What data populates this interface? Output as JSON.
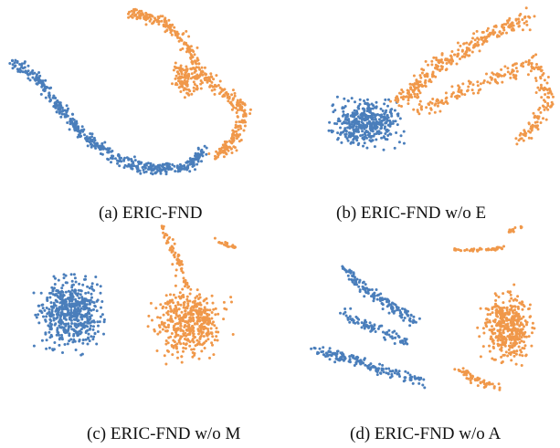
{
  "colors": {
    "class_a": "#4a7ebb",
    "class_b": "#f0984a"
  },
  "chart_data": [
    {
      "type": "scatter",
      "caption": "(a) ERIC-FND"
    },
    {
      "type": "scatter",
      "caption": "(b) ERIC-FND w/o E"
    },
    {
      "type": "scatter",
      "caption": "(c) ERIC-FND w/o M"
    },
    {
      "type": "scatter",
      "caption": "(d) ERIC-FND w/o A"
    }
  ]
}
